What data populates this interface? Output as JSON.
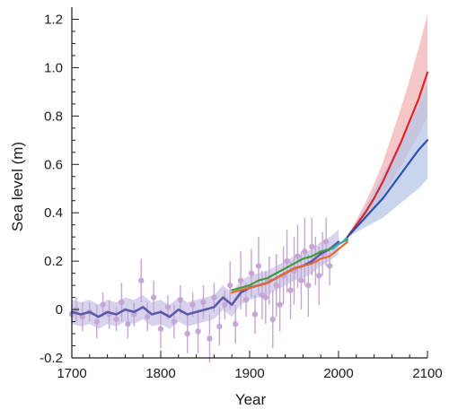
{
  "chart_data": {
    "type": "line",
    "title": "",
    "xlabel": "Year",
    "ylabel": "Sea level (m)",
    "xlim": [
      1700,
      2100
    ],
    "ylim": [
      -0.2,
      1.25
    ],
    "x_ticks": [
      1700,
      1800,
      1900,
      2000,
      2100
    ],
    "x_tick_labels": [
      "1700",
      "1800",
      "1900",
      "2000",
      "2100"
    ],
    "y_ticks": [
      -0.2,
      0,
      0.2,
      0.4,
      0.6,
      0.8,
      1.0,
      1.2
    ],
    "y_tick_labels": [
      "-0.2",
      "0",
      "0.2",
      "0.4",
      "0.6",
      "0.8",
      "1.0",
      "1.2"
    ],
    "grid": false,
    "legend": "none",
    "colors": {
      "reconstruction": "#5a5aa8",
      "reconstruction_band": "#c9c4e6",
      "tide_gauge_points": "#c7a6d6",
      "green_record": "#3f9a3a",
      "orange_record": "#e8692a",
      "cyan_record": "#38a9c9",
      "projection_high": "#e0242c",
      "projection_high_band": "#f3b3b5",
      "projection_low": "#2d4fb0",
      "projection_low_band": "#b7c5e7"
    },
    "series": [
      {
        "key": "reconstruction",
        "x": [
          1700,
          1710,
          1720,
          1730,
          1740,
          1750,
          1760,
          1770,
          1780,
          1790,
          1800,
          1810,
          1820,
          1830,
          1840,
          1850,
          1860,
          1870,
          1880,
          1890,
          1900,
          1910,
          1920,
          1930,
          1940,
          1950,
          1960,
          1970,
          1980,
          1990,
          2000
        ],
        "y": [
          -0.01,
          -0.02,
          -0.01,
          -0.03,
          -0.01,
          -0.02,
          0.0,
          -0.01,
          0.01,
          -0.02,
          -0.01,
          -0.03,
          0.0,
          -0.02,
          -0.01,
          0.0,
          0.01,
          0.05,
          0.02,
          0.07,
          0.09,
          0.1,
          0.11,
          0.13,
          0.15,
          0.17,
          0.18,
          0.2,
          0.23,
          0.25,
          0.28
        ],
        "band_width": 0.05
      },
      {
        "key": "green_record",
        "x": [
          1880,
          1890,
          1900,
          1910,
          1920,
          1930,
          1940,
          1950,
          1960,
          1970,
          1980,
          1990,
          2000,
          2010
        ],
        "y": [
          0.08,
          0.09,
          0.1,
          0.12,
          0.13,
          0.15,
          0.17,
          0.19,
          0.21,
          0.22,
          0.24,
          0.25,
          0.27,
          0.29
        ]
      },
      {
        "key": "orange_record",
        "x": [
          1880,
          1890,
          1900,
          1910,
          1920,
          1930,
          1940,
          1950,
          1960,
          1970,
          1980,
          1990,
          2000,
          2010
        ],
        "y": [
          0.07,
          0.08,
          0.09,
          0.1,
          0.11,
          0.13,
          0.15,
          0.17,
          0.18,
          0.19,
          0.21,
          0.22,
          0.25,
          0.28
        ]
      },
      {
        "key": "cyan_record",
        "x": [
          1993,
          2000,
          2005,
          2010
        ],
        "y": [
          0.25,
          0.27,
          0.28,
          0.3
        ]
      },
      {
        "key": "projection_high",
        "x": [
          2010,
          2020,
          2030,
          2040,
          2050,
          2060,
          2070,
          2080,
          2090,
          2100
        ],
        "y": [
          0.3,
          0.35,
          0.4,
          0.46,
          0.53,
          0.61,
          0.69,
          0.78,
          0.87,
          0.98
        ],
        "band_lower": [
          0.3,
          0.33,
          0.37,
          0.42,
          0.47,
          0.53,
          0.59,
          0.66,
          0.72,
          0.8
        ],
        "band_upper": [
          0.3,
          0.37,
          0.44,
          0.52,
          0.61,
          0.72,
          0.83,
          0.95,
          1.08,
          1.22
        ]
      },
      {
        "key": "projection_low",
        "x": [
          2010,
          2020,
          2030,
          2040,
          2050,
          2060,
          2070,
          2080,
          2090,
          2100
        ],
        "y": [
          0.3,
          0.34,
          0.38,
          0.42,
          0.46,
          0.51,
          0.56,
          0.61,
          0.66,
          0.7
        ],
        "band_lower": [
          0.3,
          0.32,
          0.34,
          0.36,
          0.38,
          0.41,
          0.44,
          0.47,
          0.5,
          0.54
        ],
        "band_upper": [
          0.3,
          0.36,
          0.42,
          0.49,
          0.56,
          0.63,
          0.7,
          0.77,
          0.84,
          0.93
        ]
      }
    ],
    "tide_gauge_points": {
      "x": [
        1700,
        1705,
        1712,
        1720,
        1728,
        1735,
        1742,
        1750,
        1756,
        1763,
        1770,
        1778,
        1785,
        1792,
        1800,
        1808,
        1815,
        1822,
        1830,
        1836,
        1842,
        1848,
        1855,
        1860,
        1866,
        1872,
        1878,
        1884,
        1890,
        1896,
        1902,
        1906,
        1910,
        1914,
        1918,
        1922,
        1926,
        1930,
        1934,
        1938,
        1942,
        1946,
        1950,
        1954,
        1958,
        1962,
        1966,
        1970,
        1974,
        1978,
        1982,
        1986,
        1990
      ],
      "y": [
        -0.02,
        0.0,
        -0.03,
        -0.01,
        -0.05,
        0.02,
        -0.02,
        -0.04,
        0.03,
        -0.06,
        -0.02,
        0.12,
        -0.03,
        0.05,
        -0.08,
        0.01,
        -0.05,
        0.04,
        -0.1,
        0.02,
        -0.09,
        0.03,
        -0.12,
        0.05,
        -0.07,
        0.02,
        0.1,
        -0.06,
        0.12,
        0.04,
        0.15,
        -0.02,
        0.18,
        0.06,
        0.05,
        0.12,
        -0.04,
        0.1,
        0.02,
        0.14,
        0.2,
        0.08,
        0.16,
        0.22,
        0.12,
        0.24,
        0.1,
        0.26,
        0.2,
        0.14,
        0.23,
        0.28,
        0.18
      ],
      "err": [
        0.04,
        0.05,
        0.06,
        0.04,
        0.07,
        0.05,
        0.06,
        0.05,
        0.08,
        0.06,
        0.05,
        0.09,
        0.06,
        0.07,
        0.08,
        0.05,
        0.07,
        0.06,
        0.08,
        0.05,
        0.09,
        0.07,
        0.1,
        0.06,
        0.08,
        0.06,
        0.1,
        0.08,
        0.12,
        0.07,
        0.1,
        0.08,
        0.12,
        0.1,
        0.11,
        0.1,
        0.12,
        0.13,
        0.11,
        0.12,
        0.13,
        0.12,
        0.14,
        0.13,
        0.12,
        0.14,
        0.13,
        0.12,
        0.1,
        0.12,
        0.09,
        0.1,
        0.08
      ]
    }
  }
}
